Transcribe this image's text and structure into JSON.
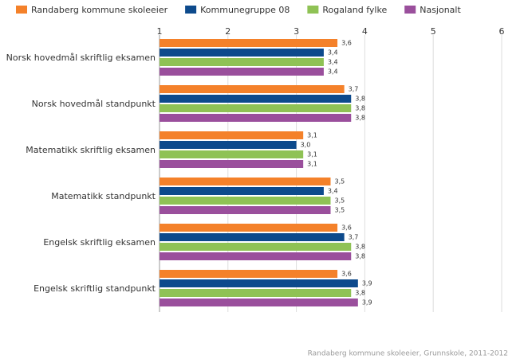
{
  "chart_data": {
    "type": "hbar",
    "categories": [
      "Norsk hovedmål skriftlig eksamen",
      "Norsk hovedmål standpunkt",
      "Matematikk skriftlig eksamen",
      "Matematikk standpunkt",
      "Engelsk skriftlig eksamen",
      "Engelsk skriftlig standpunkt"
    ],
    "series": [
      {
        "name": "Randaberg kommune skoleeier",
        "color": "#f4812a",
        "values": [
          3.6,
          3.7,
          3.1,
          3.5,
          3.6,
          3.6
        ],
        "value_labels": [
          "3,6",
          "3,7",
          "3,1",
          "3,5",
          "3,6",
          "3,6"
        ]
      },
      {
        "name": "Kommunegruppe 08",
        "color": "#0d4a8c",
        "values": [
          3.4,
          3.8,
          3.0,
          3.4,
          3.7,
          3.9
        ],
        "value_labels": [
          "3,4",
          "3,8",
          "3,0",
          "3,4",
          "3,7",
          "3,9"
        ]
      },
      {
        "name": "Rogaland fylke",
        "color": "#8fc255",
        "values": [
          3.4,
          3.8,
          3.1,
          3.5,
          3.8,
          3.8
        ],
        "value_labels": [
          "3,4",
          "3,8",
          "3,1",
          "3,5",
          "3,8",
          "3,8"
        ]
      },
      {
        "name": "Nasjonalt",
        "color": "#9a4f9c",
        "values": [
          3.4,
          3.8,
          3.1,
          3.5,
          3.8,
          3.9
        ],
        "value_labels": [
          "3,4",
          "3,8",
          "3,1",
          "3,5",
          "3,8",
          "3,9"
        ]
      }
    ],
    "xlim": [
      1,
      6
    ],
    "xticks": [
      1,
      2,
      3,
      4,
      5,
      6
    ],
    "grid": true,
    "legend": "top",
    "source": "Randaberg kommune skoleeier, Grunnskole, 2011-2012"
  }
}
